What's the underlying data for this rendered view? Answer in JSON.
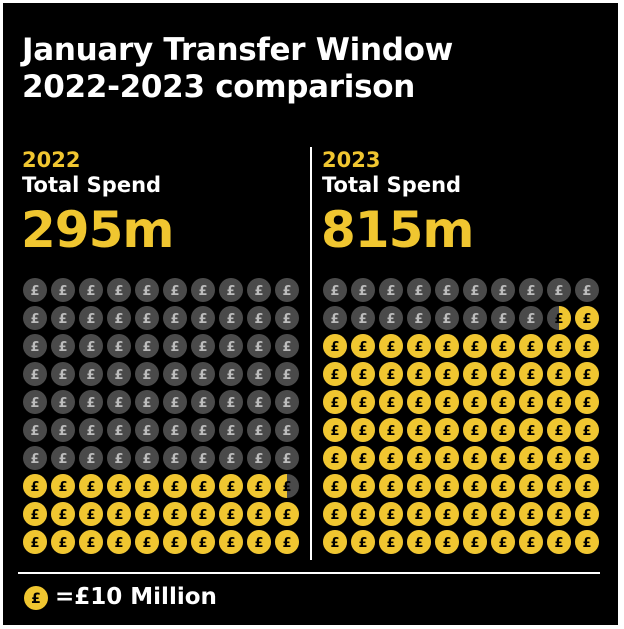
{
  "title_line1": "January Transfer Window",
  "title_line2": "2022-2023 comparison",
  "colors": {
    "background": "#000000",
    "accent_yellow": "#f0c630",
    "coin_grey": "#4a4a4a",
    "text_white": "#ffffff"
  },
  "coin_symbol": "£",
  "legend": {
    "icon": "pound-coin-icon",
    "text": "=£10 Million"
  },
  "chart_data": {
    "type": "waffle",
    "unit_value": 10,
    "unit_label": "£10 Million",
    "grid": {
      "columns": 10,
      "rows": 10
    },
    "panels": [
      {
        "year": "2022",
        "label": "Total Spend",
        "display_value": "295m",
        "value": 295,
        "units_filled": 29.5
      },
      {
        "year": "2023",
        "label": "Total Spend",
        "display_value": "815m",
        "value": 815,
        "units_filled": 81.5
      }
    ]
  }
}
